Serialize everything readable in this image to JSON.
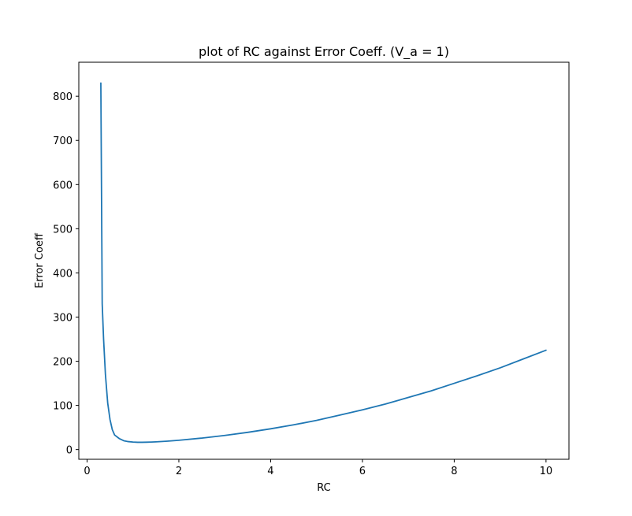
{
  "chart_data": {
    "type": "line",
    "title": "plot of RC against Error Coeff. (V_a = 1)",
    "xlabel": "RC",
    "ylabel": "Error Coeff",
    "xlim": [
      -0.18,
      10.5
    ],
    "ylim": [
      -22,
      877
    ],
    "xticks": [
      0,
      2,
      4,
      6,
      8,
      10
    ],
    "yticks": [
      0,
      100,
      200,
      300,
      400,
      500,
      600,
      700,
      800
    ],
    "grid": false,
    "series": [
      {
        "color": "#1f77b4",
        "x": [
          0.3,
          0.33,
          0.36,
          0.4,
          0.45,
          0.5,
          0.55,
          0.6,
          0.7,
          0.8,
          0.9,
          1.0,
          1.1,
          1.2,
          1.3,
          1.4,
          1.5,
          1.75,
          2.0,
          2.5,
          3.0,
          3.5,
          4.0,
          4.5,
          5.0,
          5.5,
          6.0,
          6.5,
          7.0,
          7.5,
          8.0,
          8.5,
          9.0,
          9.5,
          10.0
        ],
        "y": [
          830,
          330,
          250,
          170,
          105,
          68,
          45,
          33,
          25,
          20,
          18,
          17,
          16.5,
          16.5,
          16.7,
          17,
          17.5,
          19,
          21,
          26,
          32,
          39,
          47,
          56,
          66,
          78,
          90,
          103,
          118,
          133,
          150,
          167,
          185,
          205,
          225
        ]
      }
    ]
  }
}
